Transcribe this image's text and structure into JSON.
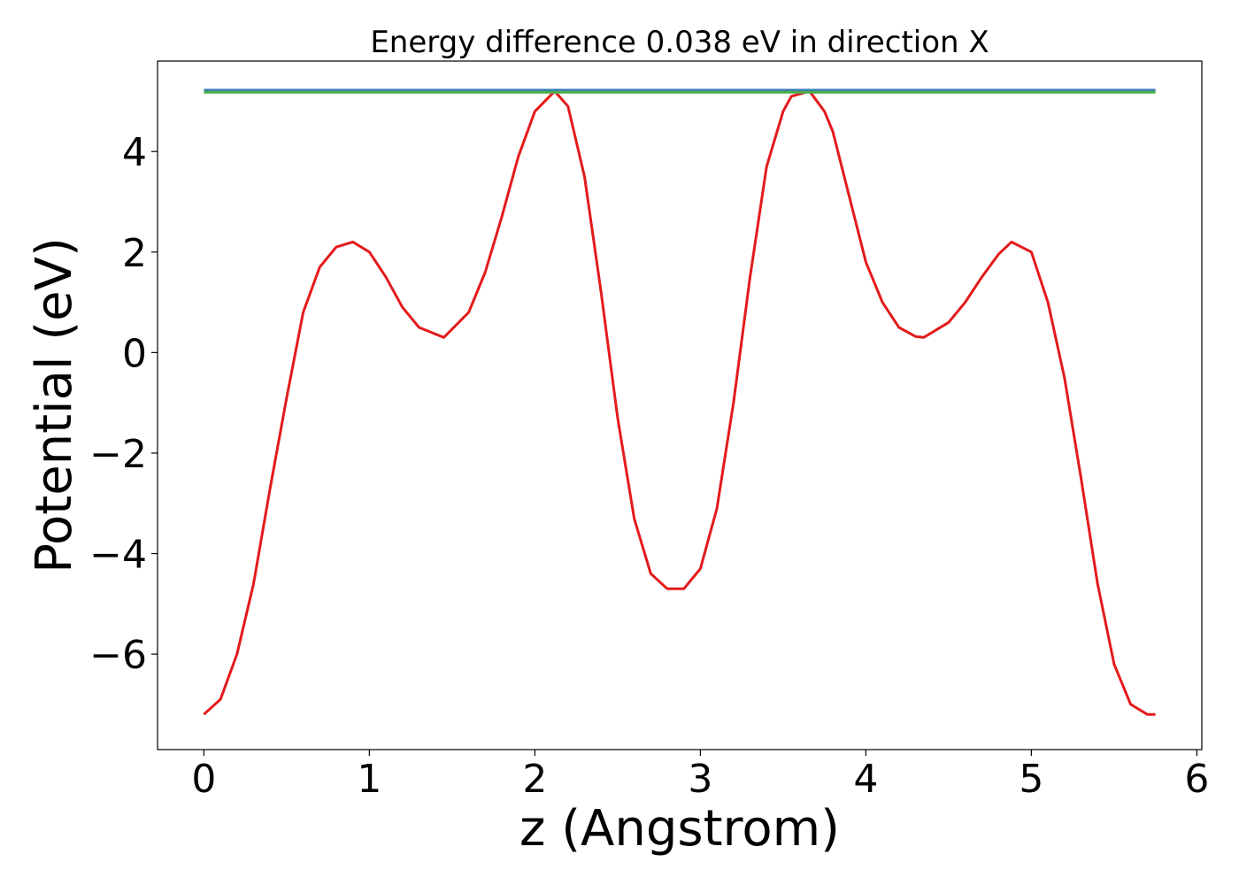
{
  "chart_data": {
    "type": "line",
    "title": "Energy difference 0.038 eV in direction X",
    "xlabel": "z (Angstrom)",
    "ylabel": "Potential (eV)",
    "xlim": [
      -0.28,
      6.03
    ],
    "ylim": [
      -7.9,
      5.8
    ],
    "xticks": [
      0,
      1,
      2,
      3,
      4,
      5,
      6
    ],
    "xtick_labels": [
      "0",
      "1",
      "2",
      "3",
      "4",
      "5",
      "6"
    ],
    "yticks": [
      -6,
      -4,
      -2,
      0,
      2,
      4
    ],
    "ytick_labels": [
      "−6",
      "−4",
      "−2",
      "0",
      "2",
      "4"
    ],
    "grid": false,
    "series": [
      {
        "color": "#e41a1c",
        "x": [
          0,
          0.1,
          0.2,
          0.3,
          0.4,
          0.5,
          0.6,
          0.7,
          0.8,
          0.9,
          1.0,
          1.1,
          1.2,
          1.3,
          1.45,
          1.6,
          1.7,
          1.8,
          1.9,
          2.0,
          2.12,
          2.2,
          2.3,
          2.4,
          2.5,
          2.6,
          2.7,
          2.8,
          2.9,
          3.0,
          3.1,
          3.2,
          3.3,
          3.4,
          3.5,
          3.55,
          3.66,
          3.75,
          3.8,
          3.9,
          4.0,
          4.1,
          4.2,
          4.3,
          4.35,
          4.5,
          4.6,
          4.7,
          4.8,
          4.88,
          5.0,
          5.1,
          5.2,
          5.3,
          5.4,
          5.5,
          5.6,
          5.7,
          5.75
        ],
        "y": [
          -7.2,
          -6.9,
          -6.0,
          -4.6,
          -2.7,
          -0.9,
          0.8,
          1.7,
          2.1,
          2.2,
          2.0,
          1.5,
          0.9,
          0.5,
          0.3,
          0.8,
          1.6,
          2.7,
          3.9,
          4.8,
          5.2,
          4.9,
          3.5,
          1.2,
          -1.3,
          -3.3,
          -4.4,
          -4.7,
          -4.7,
          -4.3,
          -3.1,
          -1.0,
          1.5,
          3.7,
          4.8,
          5.1,
          5.2,
          4.8,
          4.4,
          3.1,
          1.8,
          1.0,
          0.5,
          0.32,
          0.3,
          0.6,
          1.0,
          1.5,
          1.95,
          2.2,
          2.0,
          1.0,
          -0.5,
          -2.5,
          -4.6,
          -6.2,
          -7.0,
          -7.2,
          -7.2
        ]
      },
      {
        "color": "#377eb8",
        "x": [
          0,
          5.75
        ],
        "y": [
          5.22,
          5.22
        ]
      },
      {
        "color": "#4daf4a",
        "x": [
          0,
          5.75
        ],
        "y": [
          5.18,
          5.18
        ]
      }
    ]
  }
}
